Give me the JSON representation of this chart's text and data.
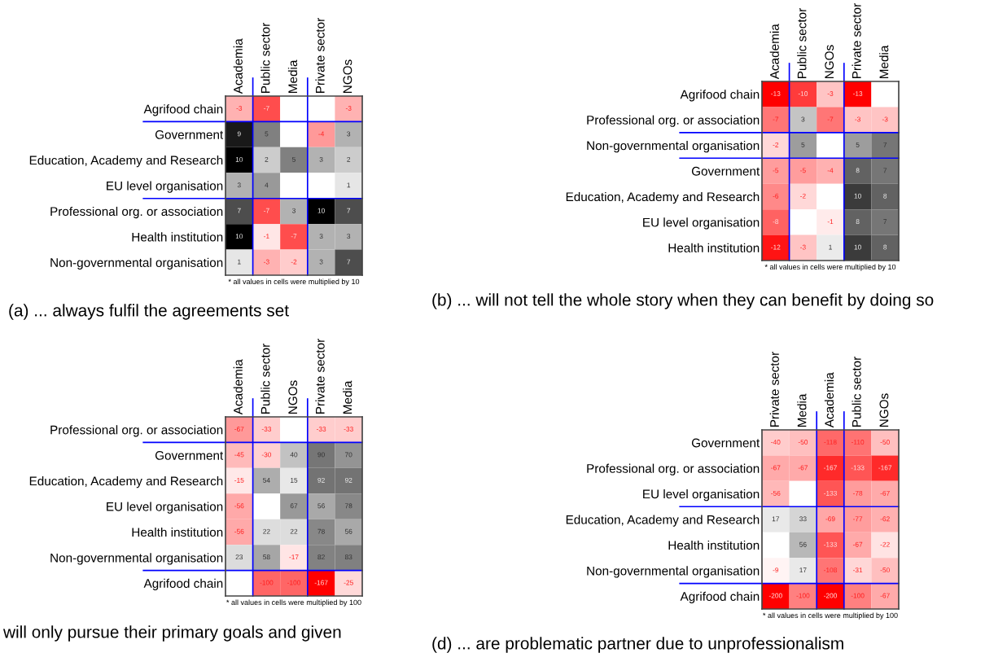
{
  "chart_data": [
    {
      "type": "heatmap",
      "title": "(a) ... always fulfil the agreements set",
      "categories": [
        "Academia",
        "Public sector",
        "Media",
        "Private sector",
        "NGOs"
      ],
      "y_categories": [
        "Agrifood chain",
        "Government",
        "Education, Academy and Research",
        "EU level organisation",
        "Professional org. or association",
        "Health institution",
        "Non-governmental organisation"
      ],
      "cells": [
        [
          -3,
          -7,
          null,
          null,
          -3
        ],
        [
          9,
          5,
          null,
          -4,
          3
        ],
        [
          10,
          2,
          5,
          3,
          2
        ],
        [
          3,
          4,
          null,
          null,
          1
        ],
        [
          7,
          -7,
          3,
          10,
          7
        ],
        [
          10,
          -1,
          -7,
          3,
          3
        ],
        [
          1,
          -3,
          -2,
          3,
          7
        ]
      ],
      "data_labels": true,
      "annotations": [
        "* all values in cells were multiplied by 10"
      ]
    },
    {
      "type": "heatmap",
      "title": "(b) ... will not tell the whole story when they can benefit by doing so",
      "categories": [
        "Academia",
        "Public sector",
        "NGOs",
        "Private sector",
        "Media"
      ],
      "y_categories": [
        "Agrifood chain",
        "Professional org. or association",
        "Non-governmental organisation",
        "Government",
        "Education, Academy and Research",
        "EU level organisation",
        "Health institution"
      ],
      "cells": [
        [
          -13,
          -10,
          -3,
          -13,
          null
        ],
        [
          -7,
          3,
          -7,
          -3,
          -3
        ],
        [
          -2,
          5,
          null,
          5,
          7
        ],
        [
          -5,
          -5,
          -4,
          8,
          7
        ],
        [
          -6,
          -2,
          null,
          10,
          8
        ],
        [
          -8,
          null,
          -1,
          8,
          7
        ],
        [
          -12,
          -3,
          1,
          10,
          8
        ]
      ],
      "data_labels": true,
      "annotations": [
        "* all values in cells were multiplied by 10"
      ]
    },
    {
      "type": "heatmap",
      "title": "will only pursue their primary goals and given",
      "categories": [
        "Academia",
        "Public sector",
        "NGOs",
        "Private sector",
        "Media"
      ],
      "y_categories": [
        "Professional org. or association",
        "Government",
        "Education, Academy and Research",
        "EU level organisation",
        "Health institution",
        "Non-governmental organisation",
        "Agrifood chain"
      ],
      "cells": [
        [
          -67,
          -33,
          null,
          -33,
          -33
        ],
        [
          -45,
          -30,
          40,
          90,
          70
        ],
        [
          -15,
          54,
          15,
          92,
          92
        ],
        [
          -56,
          null,
          67,
          56,
          78
        ],
        [
          -56,
          22,
          22,
          78,
          56
        ],
        [
          23,
          58,
          -17,
          82,
          83
        ],
        [
          null,
          -100,
          -100,
          -167,
          -25
        ]
      ],
      "data_labels": true,
      "annotations": [
        "* all values in cells were multiplied by 100"
      ]
    },
    {
      "type": "heatmap",
      "title": "(d) ... are problematic partner due to unprofessionalism",
      "categories": [
        "Private sector",
        "Media",
        "Academia",
        "Public sector",
        "NGOs"
      ],
      "y_categories": [
        "Government",
        "Professional org. or association",
        "EU level organisation",
        "Education, Academy and Research",
        "Health institution",
        "Non-governmental organisation",
        "Agrifood chain"
      ],
      "cells": [
        [
          -40,
          -50,
          -118,
          -110,
          -50
        ],
        [
          -67,
          -67,
          -167,
          -133,
          -167
        ],
        [
          -56,
          null,
          -133,
          -78,
          -67
        ],
        [
          17,
          33,
          -69,
          -77,
          -62
        ],
        [
          null,
          56,
          -133,
          -67,
          -22
        ],
        [
          -9,
          17,
          -108,
          -31,
          -50
        ],
        [
          -200,
          -100,
          -200,
          -100,
          -67
        ]
      ],
      "data_labels": true,
      "annotations": [
        "* all values in cells were multiplied by 100"
      ]
    }
  ]
}
